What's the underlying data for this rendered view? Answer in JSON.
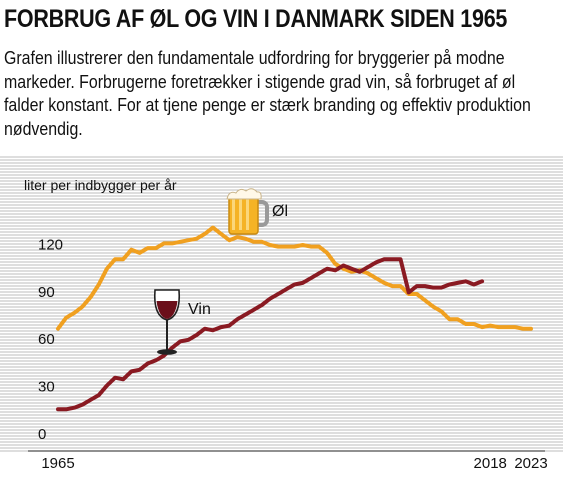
{
  "header": {
    "title": "FORBRUG AF ØL OG VIN I DANMARK SIDEN 1965",
    "subtitle": "Grafen illustrerer den fundamentale udfordring for bryggerier på modne markeder. Forbrugerne foretrækker i stigende grad vin, så forbruget af øl falder konstant. For at tjene penge er stærk branding og effektiv produktion nødvendig."
  },
  "chart_data": {
    "type": "line",
    "title": "FORBRUG AF ØL OG VIN I DANMARK SIDEN 1965",
    "ylabel": "liter per indbygger per år",
    "xlabel": "",
    "xlim": [
      1965,
      2023
    ],
    "ylim": [
      0,
      130
    ],
    "x_ticks": [
      "1965",
      "2018",
      "2023"
    ],
    "y_ticks": [
      "0",
      "30",
      "60",
      "90",
      "120"
    ],
    "grid": false,
    "colors": {
      "beer": "#f0a020",
      "wine": "#8a1a22"
    },
    "icons": {
      "beer": "beer-mug-icon",
      "wine": "wine-glass-icon"
    },
    "series": [
      {
        "name": "Øl",
        "color": "#f0a020",
        "x": [
          1965,
          1966,
          1967,
          1968,
          1969,
          1970,
          1971,
          1972,
          1973,
          1974,
          1975,
          1976,
          1977,
          1978,
          1979,
          1980,
          1981,
          1982,
          1983,
          1984,
          1985,
          1986,
          1987,
          1988,
          1989,
          1990,
          1991,
          1992,
          1993,
          1994,
          1995,
          1996,
          1997,
          1998,
          1999,
          2000,
          2001,
          2002,
          2003,
          2004,
          2005,
          2006,
          2007,
          2008,
          2009,
          2010,
          2011,
          2012,
          2013,
          2014,
          2015,
          2016,
          2017,
          2018,
          2019,
          2020,
          2021,
          2022,
          2023
        ],
        "values": [
          66,
          73,
          76,
          80,
          86,
          94,
          104,
          110,
          110,
          116,
          114,
          117,
          117,
          120,
          120,
          121,
          122,
          123,
          126,
          130,
          126,
          122,
          124,
          123,
          121,
          121,
          119,
          118,
          118,
          118,
          119,
          118,
          118,
          114,
          107,
          104,
          102,
          103,
          101,
          98,
          95,
          93,
          93,
          88,
          88,
          84,
          80,
          77,
          72,
          72,
          69,
          69,
          67,
          68,
          67,
          67,
          67,
          66,
          66
        ]
      },
      {
        "name": "Vin",
        "color": "#8a1a22",
        "x": [
          1965,
          1966,
          1967,
          1968,
          1969,
          1970,
          1971,
          1972,
          1973,
          1974,
          1975,
          1976,
          1977,
          1978,
          1979,
          1980,
          1981,
          1982,
          1983,
          1984,
          1985,
          1986,
          1987,
          1988,
          1989,
          1990,
          1991,
          1992,
          1993,
          1994,
          1995,
          1996,
          1997,
          1998,
          1999,
          2000,
          2001,
          2002,
          2003,
          2004,
          2005,
          2006,
          2007,
          2008,
          2009,
          2010,
          2011,
          2012,
          2013,
          2014,
          2015,
          2016,
          2017,
          2018,
          2019,
          2020
        ],
        "values": [
          15,
          15,
          16,
          18,
          21,
          24,
          30,
          35,
          34,
          39,
          40,
          44,
          46,
          49,
          54,
          58,
          59,
          62,
          66,
          65,
          67,
          68,
          72,
          75,
          78,
          81,
          85,
          88,
          91,
          94,
          95,
          98,
          101,
          104,
          103,
          106,
          104,
          102,
          105,
          108,
          110,
          110,
          110,
          89,
          93,
          93,
          92,
          92,
          94,
          95,
          96,
          94,
          96,
          null,
          null,
          null
        ]
      }
    ],
    "series_labels": [
      {
        "series": "Øl",
        "text": "Øl"
      },
      {
        "series": "Vin",
        "text": "Vin"
      }
    ]
  }
}
